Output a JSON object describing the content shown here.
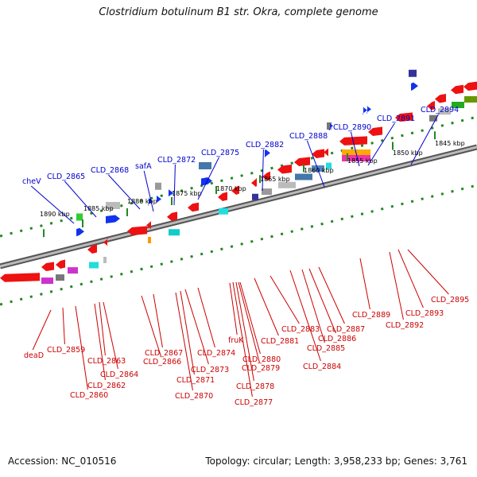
{
  "title": "Clostridium botulinum B1 str. Okra, complete genome",
  "accession": "Accession: NC_010516",
  "topology": "Topology: circular; Length: 3,958,233 bp; Genes: 3,761",
  "colors": {
    "backbone": "#888888",
    "forward_label": "#0000cc",
    "reverse_label": "#cc0000",
    "tick": "#228822",
    "gene_red": "#ee1111",
    "gene_blue": "#1133ee"
  },
  "scale_labels": [
    "1890 kbp",
    "1885 kbp",
    "1880 kbp",
    "1875 kbp",
    "1870 kbp",
    "1865 kbp",
    "1860 kbp",
    "1855 kbp",
    "1850 kbp",
    "1845 kbp"
  ],
  "forward_labels": [
    "cheV",
    "CLD_2865",
    "CLD_2868",
    "safA",
    "CLD_2872",
    "CLD_2875",
    "CLD_2882",
    "CLD_2888",
    "CLD_2890",
    "CLD_2891",
    "CLD_2894"
  ],
  "reverse_labels": [
    "deaD",
    "CLD_2859",
    "CLD_2860",
    "CLD_2862",
    "CLD_2863",
    "CLD_2864",
    "CLD_2866",
    "CLD_2867",
    "CLD_2870",
    "CLD_2871",
    "CLD_2873",
    "CLD_2874",
    "fruK",
    "CLD_2877",
    "CLD_2878",
    "CLD_2879",
    "CLD_2880",
    "CLD_2881",
    "CLD_2883",
    "CLD_2884",
    "CLD_2885",
    "CLD_2886",
    "CLD_2887",
    "CLD_2889",
    "CLD_2892",
    "CLD_2893",
    "CLD_2895"
  ]
}
